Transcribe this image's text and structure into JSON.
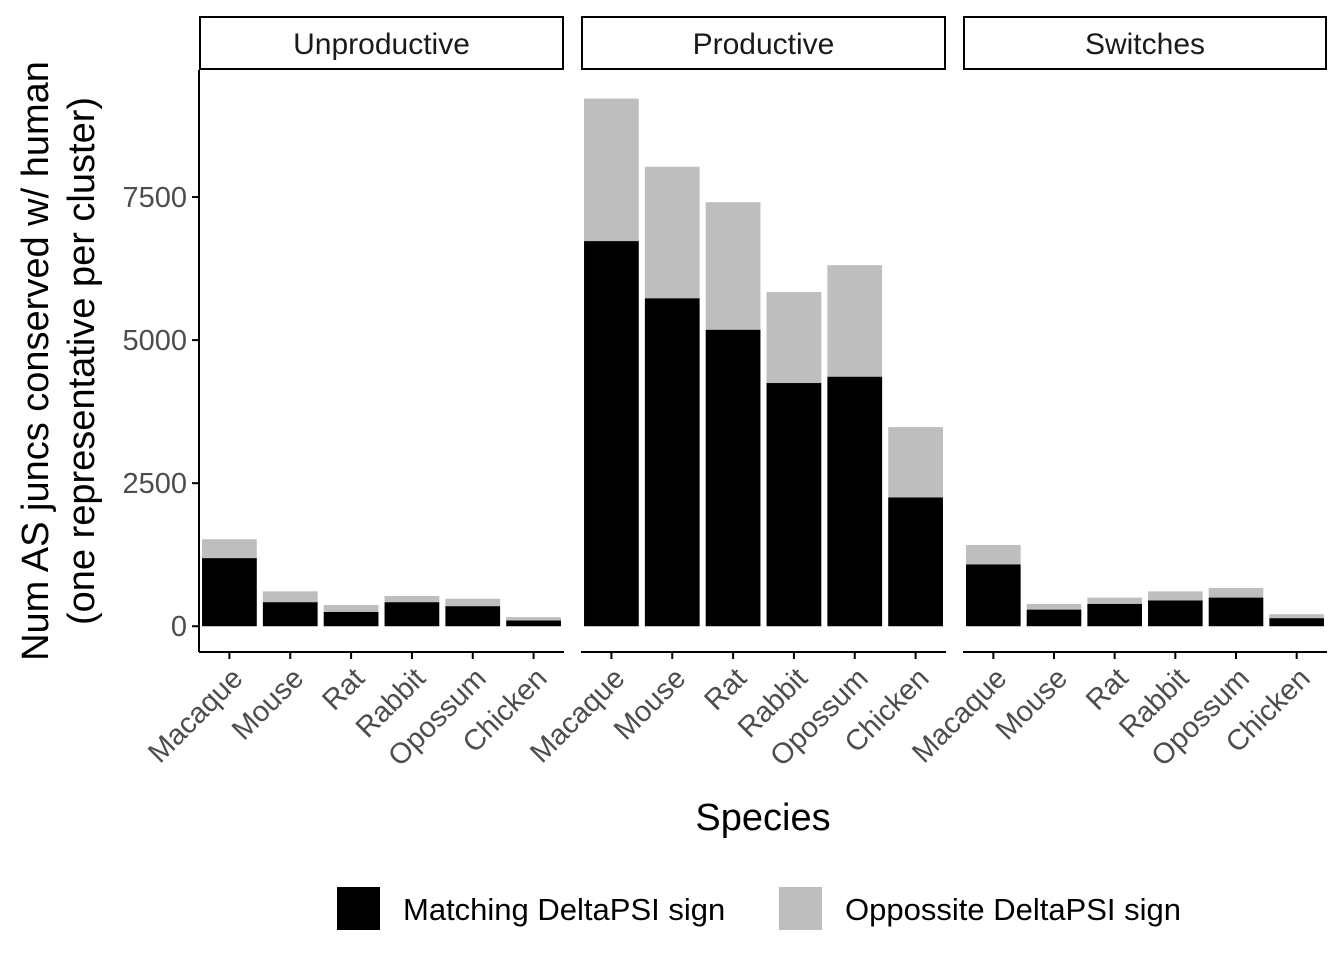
{
  "chart_data": {
    "type": "bar",
    "stacked": true,
    "facet_labels": [
      "Unproductive",
      "Productive",
      "Switches"
    ],
    "categories": [
      "Macaque",
      "Mouse",
      "Rat",
      "Rabbit",
      "Opossum",
      "Chicken"
    ],
    "xlabel": "Species",
    "ylabel_lines": [
      "Num AS juncs conserved w/ human",
      "(one representative per cluster)"
    ],
    "y_ticks": [
      0,
      2500,
      5000,
      7500
    ],
    "y_tick_labels": [
      "0",
      "2500",
      "5000",
      "7500"
    ],
    "ylim": [
      -450,
      9720
    ],
    "legend_position": "bottom",
    "grid": false,
    "colors": {
      "matching": "#000000",
      "opposite": "#bebebe",
      "axis": "#000000",
      "tick_text": "#4d4d4d"
    },
    "series": [
      {
        "name": "Matching DeltaPSI sign",
        "color": "#000000"
      },
      {
        "name": "Oppossite DeltaPSI sign",
        "color": "#bebebe"
      }
    ],
    "facets": [
      {
        "name": "Unproductive",
        "matching": [
          1190,
          420,
          250,
          420,
          350,
          100
        ],
        "total": [
          1520,
          610,
          370,
          530,
          480,
          160
        ]
      },
      {
        "name": "Productive",
        "matching": [
          6730,
          5730,
          5180,
          4250,
          4360,
          2250
        ],
        "total": [
          9220,
          8030,
          7410,
          5840,
          6310,
          3480
        ]
      },
      {
        "name": "Switches",
        "matching": [
          1080,
          290,
          390,
          450,
          500,
          140
        ],
        "total": [
          1420,
          390,
          500,
          610,
          670,
          210
        ]
      }
    ]
  }
}
